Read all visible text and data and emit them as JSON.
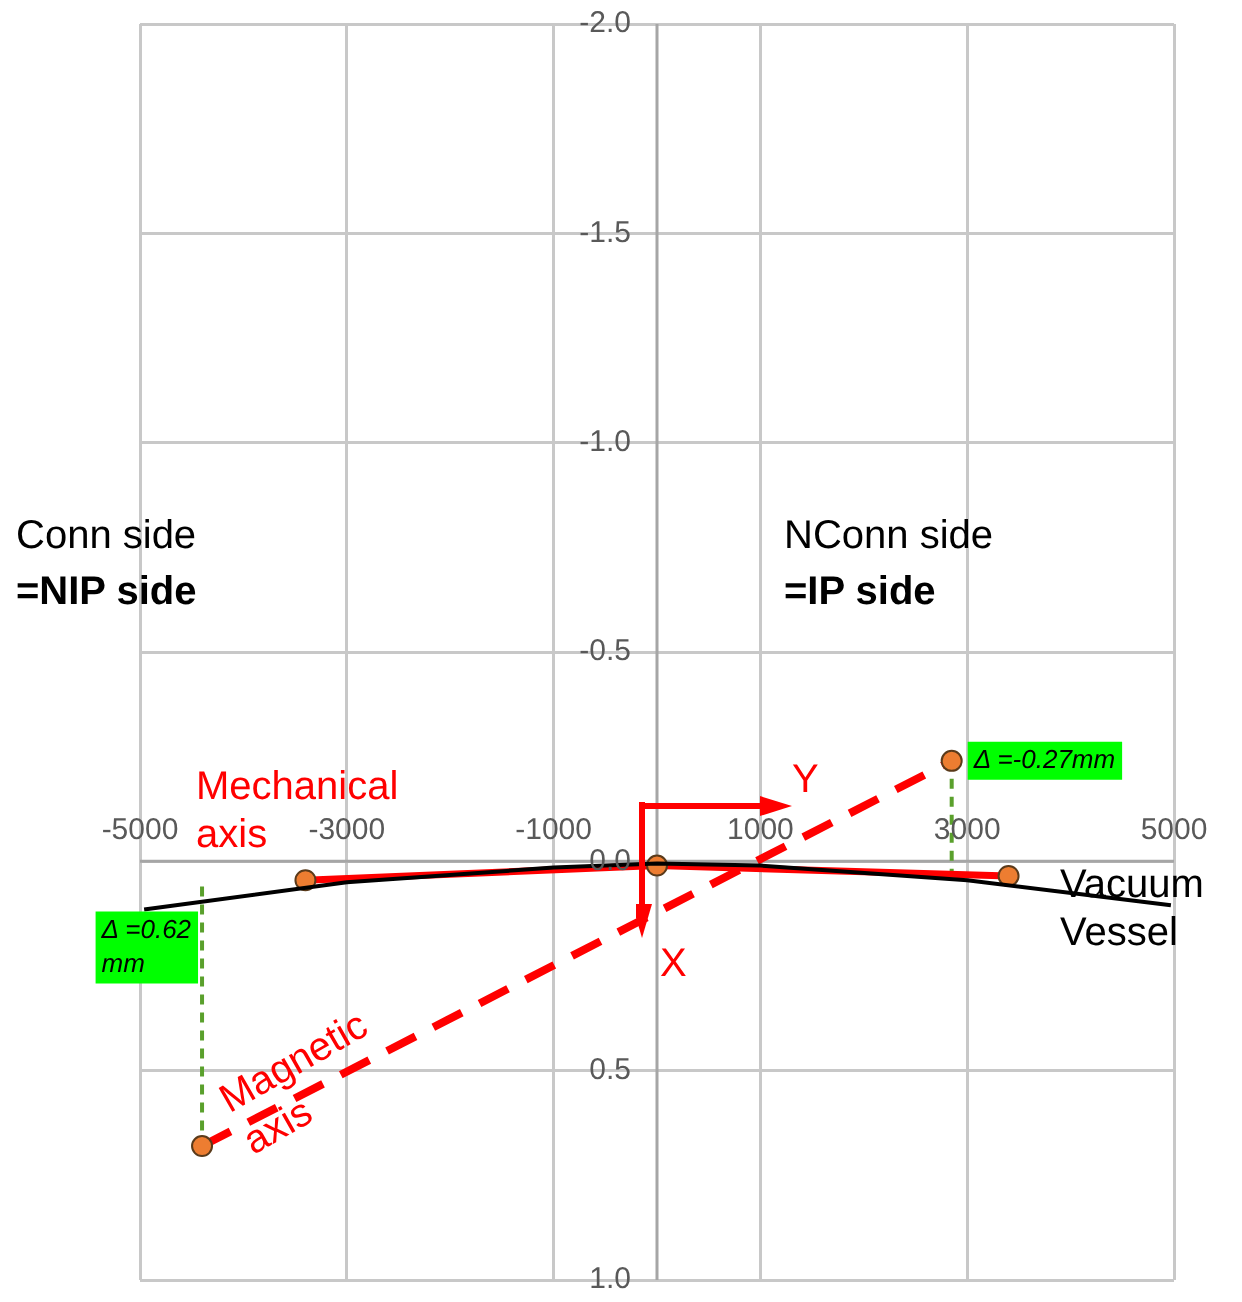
{
  "chart_data": {
    "type": "line",
    "xlim": [
      -5000,
      5000
    ],
    "xticks": [
      -5000,
      -3000,
      -1000,
      1000,
      3000,
      5000
    ],
    "ylim": [
      1.0,
      -2.0
    ],
    "yticks": [
      {
        "value": -2,
        "label": "-2.0"
      },
      {
        "value": -1.5,
        "label": "-1.5"
      },
      {
        "value": -1,
        "label": "-1.0"
      },
      {
        "value": -0.5,
        "label": "-0.5"
      },
      {
        "value": 0,
        "label": "0.0"
      },
      {
        "value": 0.5,
        "label": "0.5"
      },
      {
        "value": 1,
        "label": "1.0"
      }
    ],
    "grid": true,
    "legend": false,
    "series": [
      {
        "name": "Vacuum Vessel",
        "color": "#000000",
        "marker": "none",
        "line_style": "solid",
        "x": [
          -4960,
          -3000,
          -1000,
          0,
          1000,
          3000,
          4970
        ],
        "values": [
          0.115,
          0.05,
          0.015,
          0.005,
          0.01,
          0.045,
          0.105
        ]
      },
      {
        "name": "Mechanical axis",
        "color": "#ff0000",
        "marker": "circle",
        "line_style": "solid",
        "x": [
          -3400,
          0,
          3400
        ],
        "values": [
          0.045,
          0.01,
          0.035
        ]
      },
      {
        "name": "Magnetic axis",
        "color": "#ff0000",
        "marker": "circle",
        "line_style": "dashed",
        "x": [
          -4400,
          2850
        ],
        "values": [
          0.68,
          -0.24
        ]
      },
      {
        "color": "#5aa02c",
        "marker": "none",
        "line_style": "dotted",
        "x": [
          -4400,
          -4400
        ],
        "values": [
          0.06,
          0.68
        ]
      },
      {
        "color": "#5aa02c",
        "marker": "none",
        "line_style": "dotted",
        "x": [
          2850,
          2850
        ],
        "values": [
          -0.24,
          0.03
        ]
      }
    ],
    "annotations": [
      "Conn side",
      "=NIP side",
      "NConn side",
      "=IP side",
      "Y",
      "X",
      {
        "text": "Δ =0.62 mm",
        "x": -4400,
        "y": 0.12
      },
      {
        "text": "Δ =-0.27mm",
        "x": 2850,
        "y": -0.24
      }
    ]
  }
}
